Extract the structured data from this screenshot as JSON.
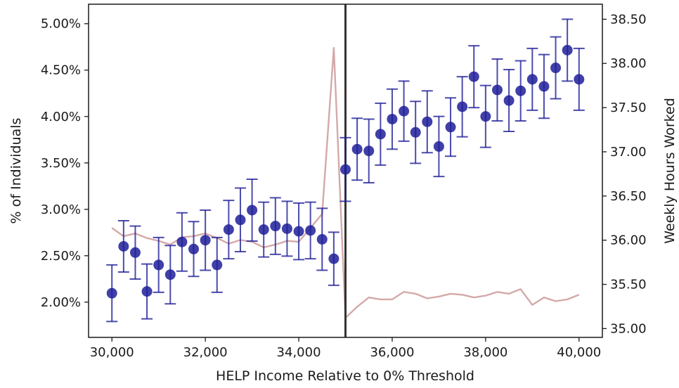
{
  "chart_data": {
    "type": "scatter",
    "xlabel": "HELP Income Relative to 0% Threshold",
    "ylabel_left": "% of Individuals",
    "ylabel_right": "Weekly Hours Worked",
    "xlim": [
      29500,
      40500
    ],
    "ylim_left": [
      0.0162,
      0.0521
    ],
    "ylim_right": [
      34.9,
      38.67
    ],
    "x_ticks": [
      30000,
      32000,
      34000,
      36000,
      38000,
      40000
    ],
    "x_tick_labels": [
      "30,000",
      "32,000",
      "34,000",
      "36,000",
      "38,000",
      "40,000"
    ],
    "y_left_ticks": [
      0.02,
      0.025,
      0.03,
      0.035,
      0.04,
      0.045,
      0.05
    ],
    "y_left_tick_labels": [
      "2.00%",
      "2.50%",
      "3.00%",
      "3.50%",
      "4.00%",
      "4.50%",
      "5.00%"
    ],
    "y_right_ticks": [
      35.0,
      35.5,
      36.0,
      36.5,
      37.0,
      37.5,
      38.0,
      38.5
    ],
    "y_right_tick_labels": [
      "35.00",
      "35.50",
      "36.00",
      "36.50",
      "37.00",
      "37.50",
      "38.00",
      "38.50"
    ],
    "threshold_x": 35000,
    "series": [
      {
        "axis": "right",
        "kind": "scatter_errorbar",
        "color": "#1f1f99",
        "x": [
          30000,
          30250,
          30500,
          30750,
          31000,
          31250,
          31500,
          31750,
          32000,
          32250,
          32500,
          32750,
          33000,
          33250,
          33500,
          33750,
          34000,
          34250,
          34500,
          34750,
          35000,
          35250,
          35500,
          35750,
          36000,
          36250,
          36500,
          36750,
          37000,
          37250,
          37500,
          37750,
          38000,
          38250,
          38500,
          38750,
          39000,
          39250,
          39500,
          39750,
          40000
        ],
        "y": [
          35.4,
          35.93,
          35.86,
          35.42,
          35.72,
          35.61,
          35.98,
          35.9,
          36.0,
          35.72,
          36.12,
          36.23,
          36.34,
          36.12,
          36.16,
          36.13,
          36.1,
          36.11,
          36.01,
          35.79,
          36.8,
          37.03,
          37.01,
          37.2,
          37.37,
          37.46,
          37.22,
          37.34,
          37.06,
          37.28,
          37.51,
          37.85,
          37.4,
          37.7,
          37.58,
          37.69,
          37.82,
          37.74,
          37.95,
          38.15,
          37.82
        ],
        "err_low": [
          35.08,
          35.64,
          35.56,
          35.11,
          35.41,
          35.28,
          35.65,
          35.59,
          35.66,
          35.41,
          35.79,
          35.87,
          35.99,
          35.81,
          35.84,
          35.82,
          35.78,
          35.79,
          35.66,
          35.49,
          36.44,
          36.68,
          36.65,
          36.85,
          37.03,
          37.12,
          36.87,
          36.99,
          36.72,
          36.95,
          37.17,
          37.5,
          37.05,
          37.35,
          37.23,
          37.35,
          37.47,
          37.38,
          37.6,
          37.8,
          37.47
        ],
        "err_high": [
          35.72,
          36.22,
          36.16,
          35.73,
          36.03,
          35.94,
          36.31,
          36.21,
          36.34,
          36.03,
          36.45,
          36.59,
          36.69,
          36.43,
          36.48,
          36.44,
          36.42,
          36.43,
          36.36,
          36.09,
          37.16,
          37.38,
          37.37,
          37.55,
          37.71,
          37.8,
          37.57,
          37.69,
          37.4,
          37.61,
          37.85,
          38.2,
          37.75,
          38.05,
          37.93,
          38.03,
          38.17,
          38.1,
          38.3,
          38.5,
          38.17
        ]
      },
      {
        "axis": "left",
        "kind": "line",
        "color": "#d4a9a9",
        "x": [
          30000,
          30250,
          30500,
          30750,
          31000,
          31250,
          31500,
          31750,
          32000,
          32250,
          32500,
          32750,
          33000,
          33250,
          33500,
          33750,
          34000,
          34250,
          34500,
          34750,
          35000,
          35250,
          35500,
          35750,
          36000,
          36250,
          36500,
          36750,
          37000,
          37250,
          37500,
          37750,
          38000,
          38250,
          38500,
          38750,
          39000,
          39250,
          39500,
          39750,
          40000
        ],
        "y": [
          0.028,
          0.0271,
          0.0274,
          0.0269,
          0.0266,
          0.0262,
          0.027,
          0.0271,
          0.0274,
          0.0269,
          0.0263,
          0.0267,
          0.0265,
          0.0259,
          0.0262,
          0.0266,
          0.0265,
          0.028,
          0.0295,
          0.0474,
          0.0183,
          0.0195,
          0.0205,
          0.0203,
          0.0203,
          0.0211,
          0.0209,
          0.0204,
          0.0206,
          0.0209,
          0.0208,
          0.0205,
          0.0207,
          0.0211,
          0.0209,
          0.0214,
          0.0197,
          0.0205,
          0.0201,
          0.0203,
          0.0208
        ]
      }
    ]
  }
}
